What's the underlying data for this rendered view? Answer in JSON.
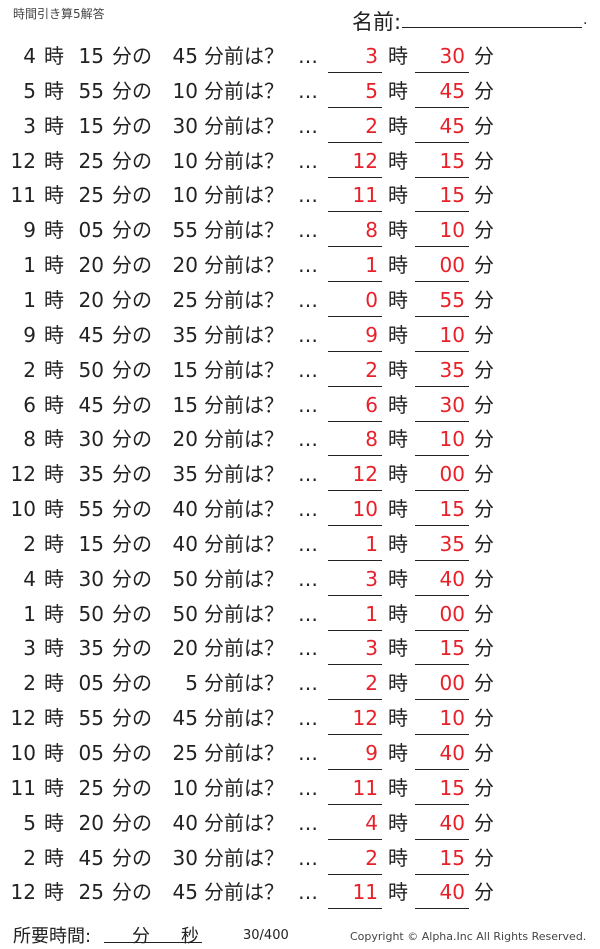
{
  "title": "時間引き算5解答",
  "name_label": "名前:",
  "labels": {
    "hour": "時",
    "min_of": "分の",
    "min_before": "分前は？",
    "dots": "…",
    "min": "分"
  },
  "rows": [
    {
      "h": "4",
      "m": "15",
      "b": "45",
      "ah": "3",
      "am": "30"
    },
    {
      "h": "5",
      "m": "55",
      "b": "10",
      "ah": "5",
      "am": "45"
    },
    {
      "h": "3",
      "m": "15",
      "b": "30",
      "ah": "2",
      "am": "45"
    },
    {
      "h": "12",
      "m": "25",
      "b": "10",
      "ah": "12",
      "am": "15"
    },
    {
      "h": "11",
      "m": "25",
      "b": "10",
      "ah": "11",
      "am": "15"
    },
    {
      "h": "9",
      "m": "05",
      "b": "55",
      "ah": "8",
      "am": "10"
    },
    {
      "h": "1",
      "m": "20",
      "b": "20",
      "ah": "1",
      "am": "00"
    },
    {
      "h": "1",
      "m": "20",
      "b": "25",
      "ah": "0",
      "am": "55"
    },
    {
      "h": "9",
      "m": "45",
      "b": "35",
      "ah": "9",
      "am": "10"
    },
    {
      "h": "2",
      "m": "50",
      "b": "15",
      "ah": "2",
      "am": "35"
    },
    {
      "h": "6",
      "m": "45",
      "b": "15",
      "ah": "6",
      "am": "30"
    },
    {
      "h": "8",
      "m": "30",
      "b": "20",
      "ah": "8",
      "am": "10"
    },
    {
      "h": "12",
      "m": "35",
      "b": "35",
      "ah": "12",
      "am": "00"
    },
    {
      "h": "10",
      "m": "55",
      "b": "40",
      "ah": "10",
      "am": "15"
    },
    {
      "h": "2",
      "m": "15",
      "b": "40",
      "ah": "1",
      "am": "35"
    },
    {
      "h": "4",
      "m": "30",
      "b": "50",
      "ah": "3",
      "am": "40"
    },
    {
      "h": "1",
      "m": "50",
      "b": "50",
      "ah": "1",
      "am": "00"
    },
    {
      "h": "3",
      "m": "35",
      "b": "20",
      "ah": "3",
      "am": "15"
    },
    {
      "h": "2",
      "m": "05",
      "b": "5",
      "ah": "2",
      "am": "00"
    },
    {
      "h": "12",
      "m": "55",
      "b": "45",
      "ah": "12",
      "am": "10"
    },
    {
      "h": "10",
      "m": "05",
      "b": "25",
      "ah": "9",
      "am": "40"
    },
    {
      "h": "11",
      "m": "25",
      "b": "10",
      "ah": "11",
      "am": "15"
    },
    {
      "h": "5",
      "m": "20",
      "b": "40",
      "ah": "4",
      "am": "40"
    },
    {
      "h": "2",
      "m": "45",
      "b": "30",
      "ah": "2",
      "am": "15"
    },
    {
      "h": "12",
      "m": "25",
      "b": "45",
      "ah": "11",
      "am": "40"
    }
  ],
  "footer": {
    "time_label": "所要時間:",
    "min": "分",
    "sec": "秒",
    "page": "30/400",
    "copyright": "Copyright ©  Alpha.Inc All Rights Reserved."
  },
  "colors": {
    "answer": "#e8202a"
  }
}
